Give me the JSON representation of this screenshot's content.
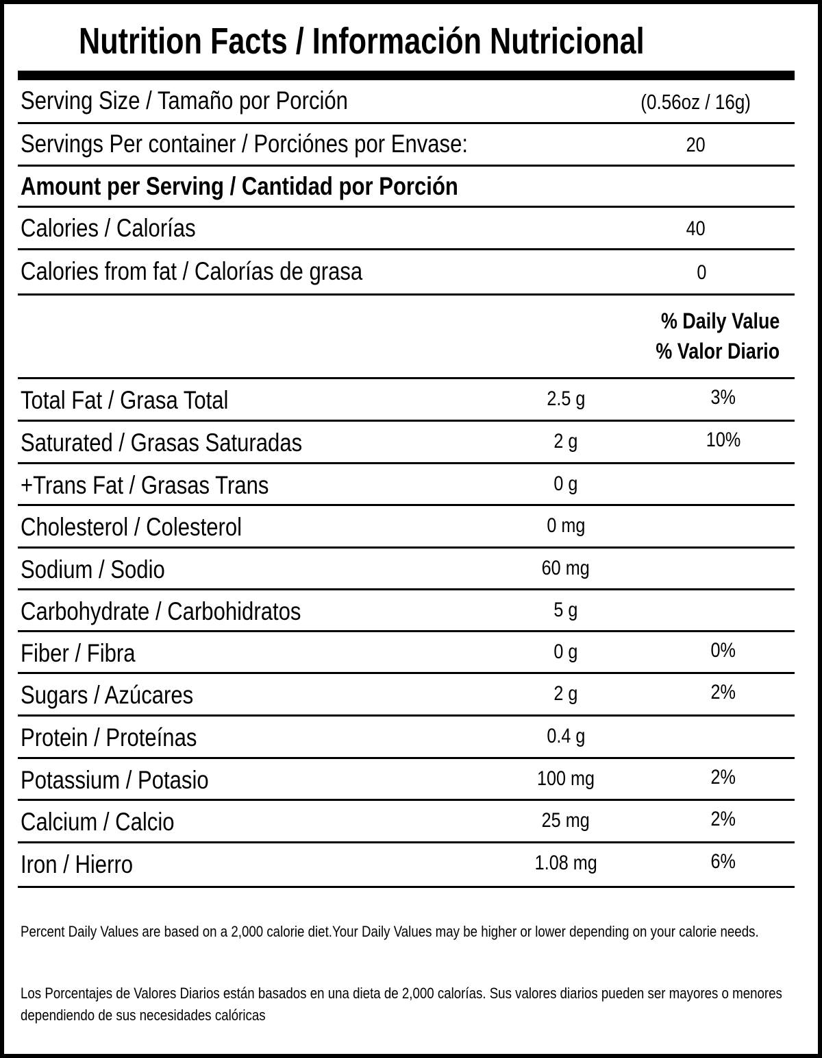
{
  "title": "Nutrition Facts / Información Nutricional",
  "serving_size": {
    "label": "Serving Size / Tamaño por Porción",
    "value": "(0.56oz / 16g)"
  },
  "servings_per_container": {
    "label": "Servings Per container / Porciónes por Envase:",
    "value": "20"
  },
  "amount_per_serving": "Amount per Serving / Cantidad por Porción",
  "calories": {
    "label": "Calories / Calorías",
    "value": "40"
  },
  "calories_from_fat": {
    "label": "Calories from fat / Calorías de grasa",
    "value": "0"
  },
  "daily_value_header": {
    "en": "% Daily Value",
    "es": "% Valor Diario"
  },
  "nutrients": [
    {
      "label": "Total Fat / Grasa Total",
      "amount": "2.5 g",
      "dv": "3%"
    },
    {
      "label": "Saturated / Grasas Saturadas",
      "amount": "2 g",
      "dv": "10%"
    },
    {
      "label": "+Trans Fat / Grasas Trans",
      "amount": "0 g",
      "dv": ""
    },
    {
      "label": "Cholesterol / Colesterol",
      "amount": "0 mg",
      "dv": ""
    },
    {
      "label": "Sodium / Sodio",
      "amount": "60 mg",
      "dv": ""
    },
    {
      "label": "Carbohydrate / Carbohidratos",
      "amount": "5 g",
      "dv": ""
    },
    {
      "label": "Fiber / Fibra",
      "amount": "0 g",
      "dv": "0%"
    },
    {
      "label": "Sugars / Azúcares",
      "amount": "2 g",
      "dv": "2%"
    },
    {
      "label": "Protein / Proteínas",
      "amount": "0.4 g",
      "dv": ""
    },
    {
      "label": "Potassium / Potasio",
      "amount": "100 mg",
      "dv": "2%"
    },
    {
      "label": "Calcium / Calcio",
      "amount": "25 mg",
      "dv": "2%"
    },
    {
      "label": "Iron / Hierro",
      "amount": "1.08 mg",
      "dv": "6%"
    }
  ],
  "footnotes": {
    "en": "Percent Daily Values are based on a 2,000 calorie diet.Your Daily Values may be higher or lower depending on your calorie needs.",
    "es": "Los Porcentajes de Valores Diarios están basados en una dieta de 2,000 calorías. Sus valores diarios pueden ser mayores o menores dependiendo de sus necesidades calóricas"
  }
}
